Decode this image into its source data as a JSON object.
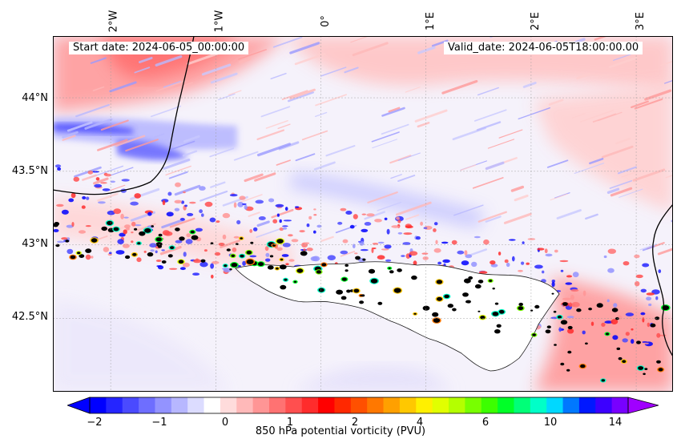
{
  "map": {
    "start_date": "Start date: 2024-06-05_00:00:00",
    "valid_date": "Valid_date: 2024-06-05T18:00:00.00",
    "projection": "lat-lon",
    "extent": {
      "lon_min": -2.55,
      "lon_max": 3.35,
      "lat_min": 42.0,
      "lat_max": 44.42
    },
    "longitude_ticks": [
      {
        "value": -2,
        "label": "2°W"
      },
      {
        "value": -1,
        "label": "1°W"
      },
      {
        "value": 0,
        "label": "0°"
      },
      {
        "value": 1,
        "label": "1°E"
      },
      {
        "value": 2,
        "label": "2°E"
      },
      {
        "value": 3,
        "label": "3°E"
      }
    ],
    "latitude_ticks": [
      {
        "value": 44.0,
        "label": "44°N"
      },
      {
        "value": 43.5,
        "label": "43.5°N"
      },
      {
        "value": 43.0,
        "label": "43°N"
      },
      {
        "value": 42.5,
        "label": "42.5°N"
      }
    ],
    "gridlines": true,
    "coastline_color": "#000000",
    "missing_data_color": "#ffffff"
  },
  "colorbar": {
    "label": "850 hPa potential vorticity (PVU)",
    "ticks": [
      {
        "value": -2,
        "label": "−2"
      },
      {
        "value": -1,
        "label": "−1"
      },
      {
        "value": 0,
        "label": "0"
      },
      {
        "value": 1,
        "label": "1"
      },
      {
        "value": 2,
        "label": "2"
      },
      {
        "value": 4,
        "label": "4"
      },
      {
        "value": 6,
        "label": "6"
      },
      {
        "value": 10,
        "label": "10"
      },
      {
        "value": 14,
        "label": "14"
      }
    ],
    "colors": [
      "#0000ff",
      "#2525ff",
      "#4a4aff",
      "#6e6eff",
      "#9393ff",
      "#b7b7ff",
      "#dcdcff",
      "#ffffff",
      "#ffdcdc",
      "#ffb9b9",
      "#ff9595",
      "#ff7272",
      "#ff4f4f",
      "#ff2c2c",
      "#ff0000",
      "#ff2800",
      "#ff5000",
      "#ff7800",
      "#ffa000",
      "#ffc800",
      "#fff000",
      "#e1ff00",
      "#b4ff00",
      "#78ff00",
      "#3cff00",
      "#00ff28",
      "#00ff78",
      "#00ffc8",
      "#00d8ff",
      "#0078ff",
      "#0018ff",
      "#3c00ff",
      "#7800ff"
    ],
    "extend_min_color": "#0000ff",
    "extend_max_color": "#a000ff"
  }
}
